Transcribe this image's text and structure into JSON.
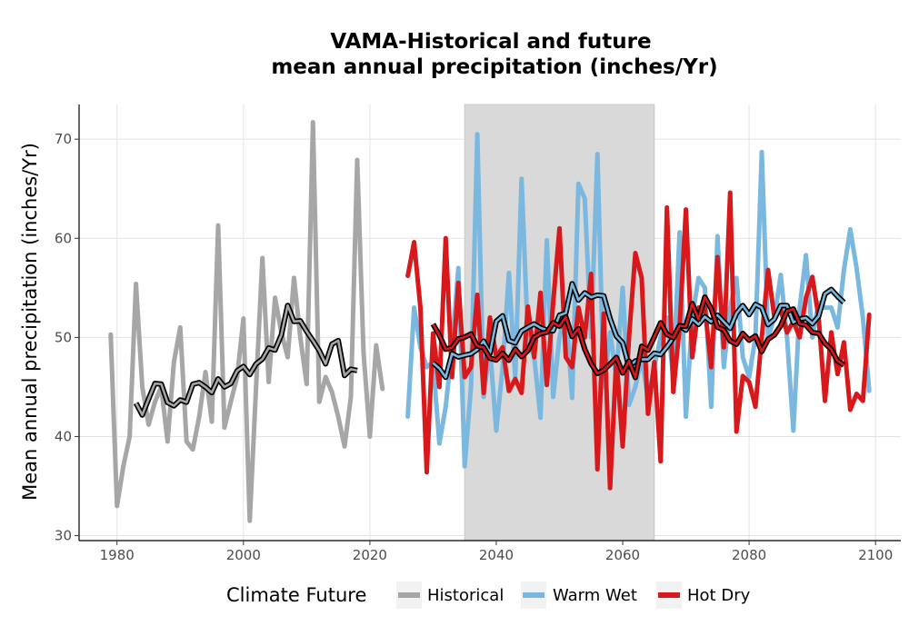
{
  "chart_data": {
    "type": "line",
    "title": [
      "VAMA-Historical and future",
      "mean annual precipitation (inches/Yr)"
    ],
    "xlabel": "",
    "ylabel": "Mean annual precipitation (inches/Yr)",
    "xlim": [
      1974,
      2104
    ],
    "ylim": [
      29.5,
      73.5
    ],
    "xticks": [
      1980,
      2000,
      2020,
      2040,
      2060,
      2080,
      2100
    ],
    "yticks": [
      30,
      40,
      50,
      60,
      70
    ],
    "grid": true,
    "shaded_period": [
      2035,
      2065
    ],
    "legend": {
      "title": "Climate Future",
      "position": "bottom",
      "entries": [
        {
          "label": "Historical",
          "color": "#a6a6a6"
        },
        {
          "label": "Warm Wet",
          "color": "#7ab8e0"
        },
        {
          "label": "Hot Dry",
          "color": "#d7191c"
        }
      ]
    },
    "series": [
      {
        "name": "Historical",
        "color": "#a6a6a6",
        "x": [
          1979,
          1980,
          1981,
          1982,
          1983,
          1984,
          1985,
          1986,
          1987,
          1988,
          1989,
          1990,
          1991,
          1992,
          1993,
          1994,
          1995,
          1996,
          1997,
          1998,
          1999,
          2000,
          2001,
          2002,
          2003,
          2004,
          2005,
          2006,
          2007,
          2008,
          2009,
          2010,
          2011,
          2012,
          2013,
          2014,
          2015,
          2016,
          2017,
          2018,
          2019,
          2020,
          2021,
          2022
        ],
        "values": [
          50.3,
          33.0,
          37.0,
          40.0,
          55.4,
          45.0,
          41.2,
          43.5,
          45.0,
          39.5,
          47.5,
          51.0,
          39.5,
          38.7,
          42.0,
          46.5,
          41.5,
          61.3,
          40.9,
          43.5,
          46.0,
          51.9,
          31.5,
          45.0,
          58.0,
          45.5,
          54.0,
          50.5,
          48.0,
          56.0,
          50.0,
          45.3,
          71.7,
          43.5,
          46.0,
          44.5,
          42.0,
          39.0,
          44.0,
          67.9,
          48.5,
          40.0,
          49.2,
          44.8
        ]
      },
      {
        "name": "Warm Wet",
        "color": "#7ab8e0",
        "x": [
          2026,
          2027,
          2028,
          2029,
          2030,
          2031,
          2032,
          2033,
          2034,
          2035,
          2036,
          2037,
          2038,
          2039,
          2040,
          2041,
          2042,
          2043,
          2044,
          2045,
          2046,
          2047,
          2048,
          2049,
          2050,
          2051,
          2052,
          2053,
          2054,
          2055,
          2056,
          2057,
          2058,
          2059,
          2060,
          2061,
          2062,
          2063,
          2064,
          2065,
          2066,
          2067,
          2068,
          2069,
          2070,
          2071,
          2072,
          2073,
          2074,
          2075,
          2076,
          2077,
          2078,
          2079,
          2080,
          2081,
          2082,
          2083,
          2084,
          2085,
          2086,
          2087,
          2088,
          2089,
          2090,
          2091,
          2092,
          2093,
          2094,
          2095,
          2096,
          2097,
          2098,
          2099
        ],
        "values": [
          42.0,
          53.0,
          49.0,
          47.0,
          47.5,
          39.3,
          43.0,
          49.0,
          57.0,
          37.0,
          45.0,
          70.5,
          44.0,
          49.0,
          40.6,
          47.0,
          56.5,
          46.0,
          66.0,
          50.0,
          48.0,
          41.9,
          59.8,
          44.0,
          50.0,
          53.0,
          43.9,
          65.5,
          64.0,
          50.0,
          68.5,
          45.0,
          50.5,
          46.0,
          55.0,
          43.2,
          45.0,
          48.0,
          43.8,
          47.0,
          50.0,
          52.0,
          46.0,
          60.6,
          42.0,
          52.0,
          56.0,
          55.0,
          43.0,
          60.2,
          47.0,
          53.0,
          56.0,
          48.0,
          46.0,
          50.0,
          68.7,
          50.0,
          52.0,
          56.3,
          50.0,
          40.6,
          53.0,
          58.3,
          50.0,
          53.5,
          53.0,
          53.0,
          51.0,
          56.8,
          60.9,
          57.0,
          52.0,
          44.6
        ]
      },
      {
        "name": "Hot Dry",
        "color": "#d7191c",
        "x": [
          2026,
          2027,
          2028,
          2029,
          2030,
          2031,
          2032,
          2033,
          2034,
          2035,
          2036,
          2037,
          2038,
          2039,
          2040,
          2041,
          2042,
          2043,
          2044,
          2045,
          2046,
          2047,
          2048,
          2049,
          2050,
          2051,
          2052,
          2053,
          2054,
          2055,
          2056,
          2057,
          2058,
          2059,
          2060,
          2061,
          2062,
          2063,
          2064,
          2065,
          2066,
          2067,
          2068,
          2069,
          2070,
          2071,
          2072,
          2073,
          2074,
          2075,
          2076,
          2077,
          2078,
          2079,
          2080,
          2081,
          2082,
          2083,
          2084,
          2085,
          2086,
          2087,
          2088,
          2089,
          2090,
          2091,
          2092,
          2093,
          2094,
          2095,
          2096,
          2097,
          2098,
          2099
        ],
        "values": [
          56.2,
          59.6,
          53.0,
          36.4,
          50.4,
          45.0,
          60.0,
          46.0,
          55.5,
          46.0,
          47.0,
          54.3,
          44.4,
          52.0,
          48.0,
          49.0,
          44.6,
          45.8,
          44.4,
          53.1,
          48.0,
          54.5,
          45.2,
          53.5,
          61.0,
          48.0,
          47.0,
          53.0,
          50.0,
          56.4,
          36.7,
          52.4,
          34.8,
          48.0,
          39.0,
          50.0,
          58.5,
          56.0,
          42.3,
          47.5,
          37.5,
          63.1,
          44.5,
          51.0,
          62.9,
          48.0,
          53.0,
          53.0,
          47.0,
          58.1,
          49.0,
          64.6,
          40.5,
          46.1,
          45.5,
          43.0,
          50.0,
          56.8,
          52.0,
          52.8,
          50.5,
          51.6,
          50.0,
          54.0,
          56.1,
          52.0,
          43.6,
          50.5,
          46.3,
          49.5,
          42.7,
          44.3,
          43.6,
          52.3
        ]
      }
    ]
  }
}
